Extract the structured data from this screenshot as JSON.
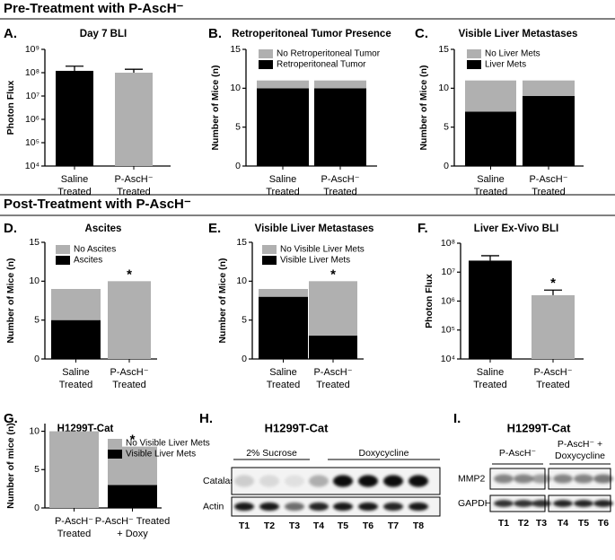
{
  "sections": [
    "Pre-Treatment with P-AscH⁻",
    "Post-Treatment with P-AscH⁻"
  ],
  "chart_data": [
    {
      "type": "bar",
      "panel": "A.",
      "title": "Day 7 BLI",
      "ylabel": "Photon Flux",
      "log": true,
      "categories": [
        "Saline\nTreated",
        "P-AscH⁻\nTreated"
      ],
      "values": [
        120000000,
        100000000
      ],
      "errors": [
        70000000,
        40000000
      ],
      "colors": [
        "#000000",
        "#b0b0b0"
      ],
      "ylim": [
        10000,
        1000000000
      ],
      "yticks": [
        {
          "value": 10000,
          "label": "10⁴"
        },
        {
          "value": 100000,
          "label": "10⁵"
        },
        {
          "value": 1000000,
          "label": "10⁶"
        },
        {
          "value": 10000000,
          "label": "10⁷"
        },
        {
          "value": 100000000,
          "label": "10⁸"
        },
        {
          "value": 1000000000,
          "label": "10⁹"
        }
      ]
    },
    {
      "type": "bar",
      "stacked": true,
      "panel": "B.",
      "title": "Retroperitoneal Tumor Presence",
      "ylabel": "Number of Mice (n)",
      "categories": [
        "Saline\nTreated",
        "P-AscH⁻\nTreated"
      ],
      "series": [
        {
          "name": "Retroperitoneal Tumor",
          "color": "#000000",
          "values": [
            10,
            10
          ]
        },
        {
          "name": "No Retroperitoneal Tumor",
          "color": "#b0b0b0",
          "values": [
            1,
            1
          ]
        }
      ],
      "ylim": [
        0,
        15
      ],
      "yticks": [
        0,
        5,
        10,
        15
      ]
    },
    {
      "type": "bar",
      "stacked": true,
      "panel": "C.",
      "title": "Visible Liver Metastases",
      "ylabel": "Number of Mice (n)",
      "categories": [
        "Saline\nTreated",
        "P-AscH⁻\nTreated"
      ],
      "series": [
        {
          "name": "Liver Mets",
          "color": "#000000",
          "values": [
            7,
            9
          ]
        },
        {
          "name": "No Liver Mets",
          "color": "#b0b0b0",
          "values": [
            4,
            2
          ]
        }
      ],
      "ylim": [
        0,
        15
      ],
      "yticks": [
        0,
        5,
        10,
        15
      ]
    },
    {
      "type": "bar",
      "stacked": true,
      "panel": "D.",
      "title": "Ascites",
      "ylabel": "Number of Mice (n)",
      "annotation": "*",
      "categories": [
        "Saline\nTreated",
        "P-AscH⁻\nTreated"
      ],
      "series": [
        {
          "name": "Ascites",
          "color": "#000000",
          "values": [
            5,
            0
          ]
        },
        {
          "name": "No Ascites",
          "color": "#b0b0b0",
          "values": [
            4,
            10
          ]
        }
      ],
      "ylim": [
        0,
        15
      ],
      "yticks": [
        0,
        5,
        10,
        15
      ]
    },
    {
      "type": "bar",
      "stacked": true,
      "panel": "E.",
      "title": "Visible Liver Metastases",
      "ylabel": "Number of Mice (n)",
      "annotation": "*",
      "categories": [
        "Saline\nTreated",
        "P-AscH⁻\nTreated"
      ],
      "series": [
        {
          "name": "Visible Liver Mets",
          "color": "#000000",
          "values": [
            8,
            3
          ]
        },
        {
          "name": "No Visible Liver Mets",
          "color": "#b0b0b0",
          "values": [
            1,
            7
          ]
        }
      ],
      "ylim": [
        0,
        15
      ],
      "yticks": [
        0,
        5,
        10,
        15
      ]
    },
    {
      "type": "bar",
      "panel": "F.",
      "title": "Liver Ex-Vivo BLI",
      "ylabel": "Photon Flux",
      "log": true,
      "annotation": "*",
      "categories": [
        "Saline\nTreated",
        "P-AscH⁻\nTreated"
      ],
      "values": [
        25000000,
        1600000
      ],
      "errors": [
        12000000,
        800000
      ],
      "colors": [
        "#000000",
        "#b0b0b0"
      ],
      "ylim": [
        10000,
        100000000
      ],
      "yticks": [
        {
          "value": 10000,
          "label": "10⁴"
        },
        {
          "value": 100000,
          "label": "10⁵"
        },
        {
          "value": 1000000,
          "label": "10⁶"
        },
        {
          "value": 10000000,
          "label": "10⁷"
        },
        {
          "value": 100000000,
          "label": "10⁸"
        }
      ]
    },
    {
      "type": "bar",
      "stacked": true,
      "panel": "G.",
      "title": "H1299T-Cat",
      "ylabel": "Number of mice (n)",
      "annotation": "*",
      "categories": [
        "P-AscH⁻\nTreated",
        "P-AscH⁻ Treated\n+ Doxy"
      ],
      "series": [
        {
          "name": "Visible Liver Mets",
          "color": "#000000",
          "values": [
            0,
            3
          ]
        },
        {
          "name": "No Visible Liver Mets",
          "color": "#b0b0b0",
          "values": [
            10,
            5
          ]
        }
      ],
      "ylim": [
        0,
        11
      ],
      "yticks": [
        0,
        5,
        10
      ]
    }
  ],
  "blots": [
    {
      "panel": "H.",
      "title": "H1299T-Cat",
      "groups": [
        "2% Sucrose",
        "Doxycycline"
      ],
      "rows": [
        "Catalase",
        "Actin"
      ],
      "lanes": [
        "T1",
        "T2",
        "T3",
        "T4",
        "T5",
        "T6",
        "T7",
        "T8"
      ]
    },
    {
      "panel": "I.",
      "title": "H1299T-Cat",
      "groups": [
        "P-AscH⁻",
        "P-AscH⁻ +\nDoxycycline"
      ],
      "rows": [
        "MMP2",
        "GAPDH"
      ],
      "lanes": [
        "T1",
        "T2",
        "T3",
        "T4",
        "T5",
        "T6"
      ]
    }
  ]
}
